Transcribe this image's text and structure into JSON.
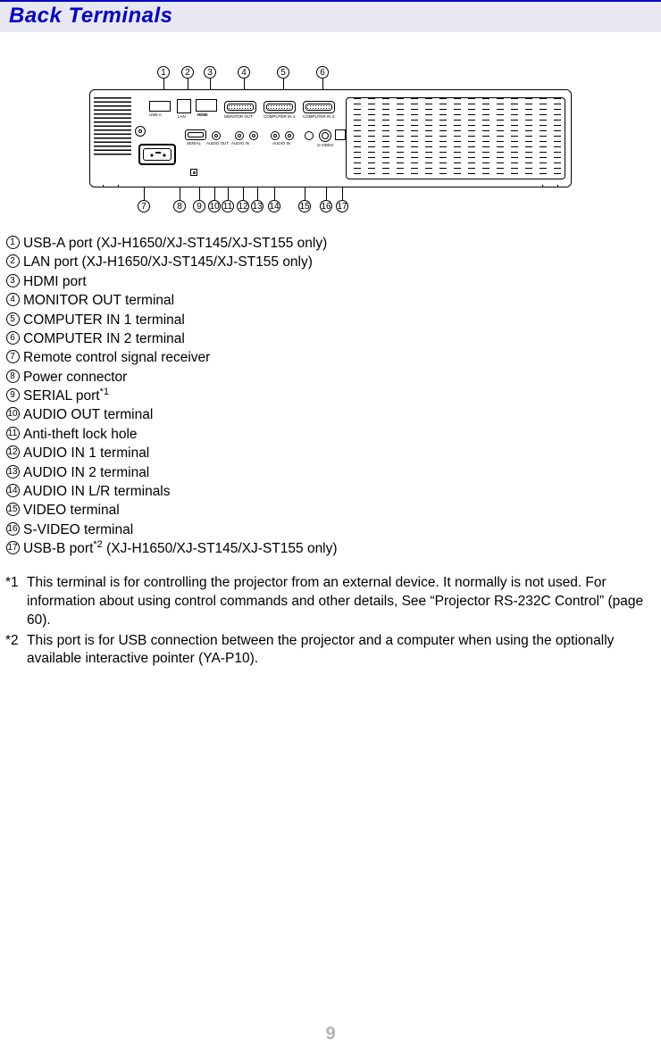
{
  "header": {
    "title": "Back Terminals"
  },
  "page_number": "9",
  "callouts_top": [
    "1",
    "2",
    "3",
    "4",
    "5",
    "6"
  ],
  "callouts_bottom": [
    "7",
    "8",
    "9",
    "10",
    "11",
    "12",
    "13",
    "14",
    "15",
    "16",
    "17"
  ],
  "port_labels": {
    "usb_a": "USB-A",
    "lan": "LAN",
    "hdmi": "HDMI",
    "monitor_out": "MONITOR OUT",
    "computer_in_1": "COMPUTER IN 1",
    "computer_in_2": "COMPUTER IN 2",
    "serial": "SERIAL",
    "audio_out": "AUDIO OUT",
    "audio_in": "AUDIO IN",
    "s_video": "S-VIDEO"
  },
  "items": [
    {
      "n": "1",
      "text": "USB-A port (XJ-H1650/XJ-ST145/XJ-ST155 only)"
    },
    {
      "n": "2",
      "text": "LAN port (XJ-H1650/XJ-ST145/XJ-ST155 only)"
    },
    {
      "n": "3",
      "text": "HDMI port"
    },
    {
      "n": "4",
      "text": "MONITOR OUT terminal"
    },
    {
      "n": "5",
      "text": "COMPUTER IN 1 terminal"
    },
    {
      "n": "6",
      "text": "COMPUTER IN 2 terminal"
    },
    {
      "n": "7",
      "text": "Remote control signal receiver"
    },
    {
      "n": "8",
      "text": "Power connector"
    },
    {
      "n": "9",
      "text": "SERIAL port",
      "sup": "*1"
    },
    {
      "n": "10",
      "text": "AUDIO OUT terminal"
    },
    {
      "n": "11",
      "text": "Anti-theft lock hole"
    },
    {
      "n": "12",
      "text": "AUDIO IN 1 terminal"
    },
    {
      "n": "13",
      "text": "AUDIO IN 2 terminal"
    },
    {
      "n": "14",
      "text": "AUDIO IN L/R terminals"
    },
    {
      "n": "15",
      "text": "VIDEO terminal"
    },
    {
      "n": "16",
      "text": "S-VIDEO terminal"
    },
    {
      "n": "17",
      "text": "USB-B port",
      "sup": "*2",
      "tail": " (XJ-H1650/XJ-ST145/XJ-ST155 only)"
    }
  ],
  "notes": [
    {
      "key": "*1",
      "text": "This terminal is for controlling the projector from an external device. It normally is not used. For information about using control commands and other details, See “Projector RS-232C Control” (page 60)."
    },
    {
      "key": "*2",
      "text": "This port is for USB connection between the projector and a computer when using the optionally available interactive pointer (YA-P10)."
    }
  ]
}
